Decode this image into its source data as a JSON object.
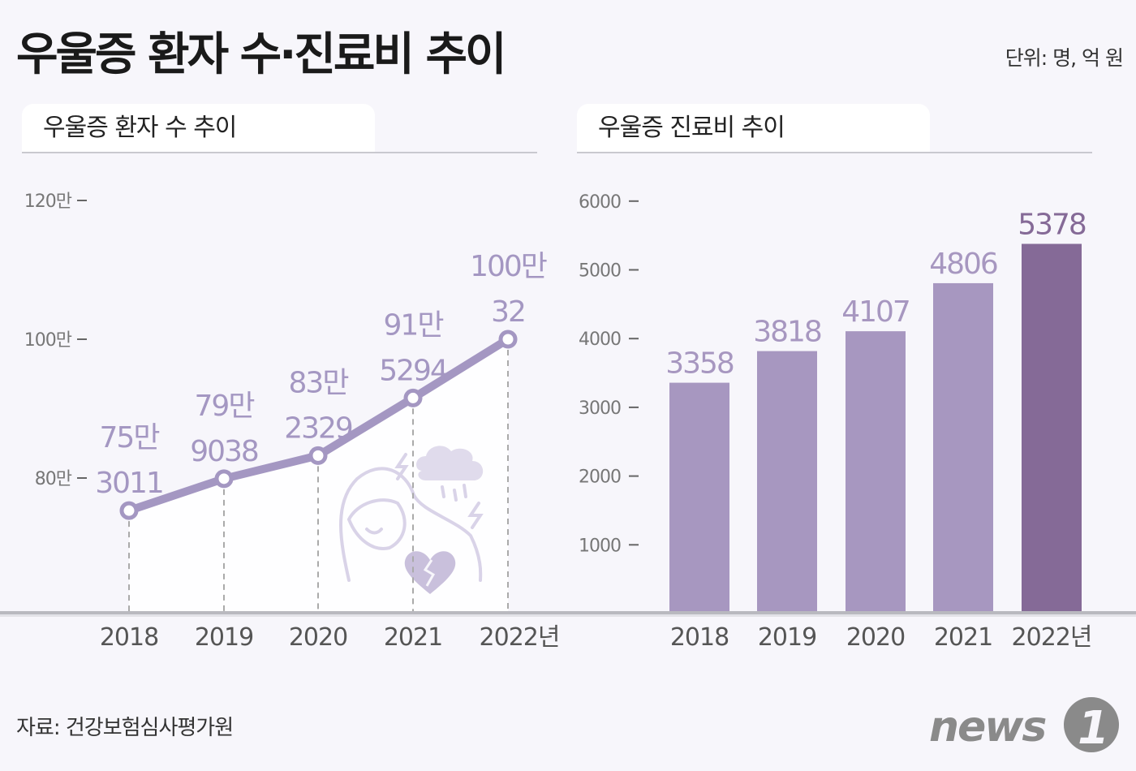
{
  "title": "우울증 환자 수·진료비 추이",
  "unit": "단위: 명, 억 원",
  "source": "자료: 건강보험심사평가원",
  "logo_text": "news1",
  "colors": {
    "line": "#a497c2",
    "bar": "#a797c0",
    "bar_highlight": "#856a97",
    "background": "#f7f6fb",
    "illustration": "#d9d3e8"
  },
  "chart_data": [
    {
      "type": "line",
      "title": "우울증 환자 수 추이",
      "categories": [
        "2018",
        "2019",
        "2020",
        "2021",
        "2022년"
      ],
      "values": [
        753011,
        799038,
        832329,
        915294,
        1000032
      ],
      "data_labels": [
        [
          "75만",
          "3011"
        ],
        [
          "79만",
          "9038"
        ],
        [
          "83만",
          "2329"
        ],
        [
          "91만",
          "5294"
        ],
        [
          "100만",
          "32"
        ]
      ],
      "yticks": [
        {
          "value": 800000,
          "label": "80만"
        },
        {
          "value": 1000000,
          "label": "100만"
        },
        {
          "value": 1200000,
          "label": "120만"
        }
      ],
      "ylim": [
        660000,
        1200000
      ],
      "grid": false,
      "illustration": "depressed-person-with-rain-cloud-and-broken-heart"
    },
    {
      "type": "bar",
      "title": "우울증 진료비 추이",
      "categories": [
        "2018",
        "2019",
        "2020",
        "2021",
        "2022년"
      ],
      "values": [
        3358,
        3818,
        4107,
        4806,
        5378
      ],
      "data_labels": [
        "3358",
        "3818",
        "4107",
        "4806",
        "5378"
      ],
      "highlight_index": 4,
      "yticks": [
        {
          "value": 1000,
          "label": "1000"
        },
        {
          "value": 2000,
          "label": "2000"
        },
        {
          "value": 3000,
          "label": "3000"
        },
        {
          "value": 4000,
          "label": "4000"
        },
        {
          "value": 5000,
          "label": "5000"
        },
        {
          "value": 6000,
          "label": "6000"
        }
      ],
      "ylim": [
        0,
        6000
      ],
      "grid": false
    }
  ]
}
